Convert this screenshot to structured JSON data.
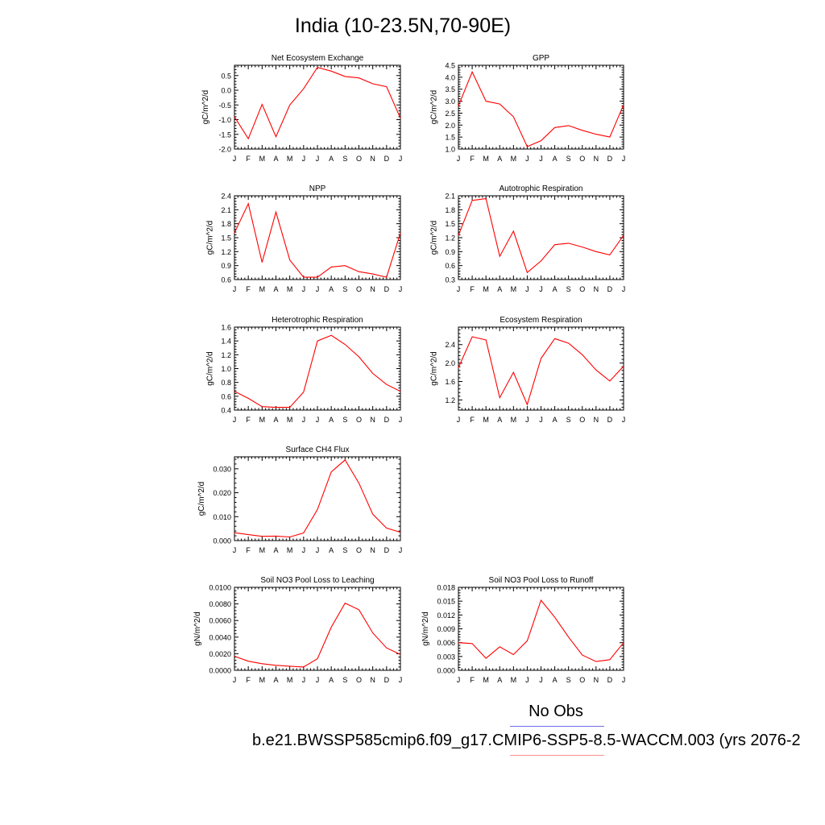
{
  "figure": {
    "title": "India (10-23.5N,70-90E)",
    "legend_top_label": "No Obs",
    "case_label": "b.e21.BWSSP585cmip6.f09_g17.CMIP6-SSP5-8.5-WACCM.003 (yrs 2076-2",
    "line_color": "#ff0000",
    "obs_line_color": "#6f6fe8",
    "case_line_color": "#ff9090"
  },
  "chart_data": [
    {
      "type": "line",
      "title": "Net Ecosystem Exchange",
      "ylabel": "gC/m^2/d",
      "categories": [
        "J",
        "F",
        "M",
        "A",
        "M",
        "J",
        "J",
        "A",
        "S",
        "O",
        "N",
        "D",
        "J"
      ],
      "values": [
        -0.9,
        -1.65,
        -0.48,
        -1.58,
        -0.5,
        0.05,
        0.78,
        0.65,
        0.47,
        0.42,
        0.22,
        0.12,
        -0.95
      ],
      "ylim": [
        -2.0,
        0.85
      ],
      "yticks": [
        -2.0,
        -1.5,
        -1.0,
        -0.5,
        0.0,
        0.5
      ],
      "ytick_labels": [
        "-2.0",
        "-1.5",
        "-1.0",
        "-0.5",
        "0.0",
        "0.5"
      ]
    },
    {
      "type": "line",
      "title": "GPP",
      "ylabel": "gC/m^2/d",
      "categories": [
        "J",
        "F",
        "M",
        "A",
        "M",
        "J",
        "J",
        "A",
        "S",
        "O",
        "N",
        "D",
        "J"
      ],
      "values": [
        2.8,
        4.22,
        3.0,
        2.88,
        2.35,
        1.1,
        1.35,
        1.9,
        1.98,
        1.78,
        1.62,
        1.5,
        2.85
      ],
      "ylim": [
        1.0,
        4.5
      ],
      "yticks": [
        1.0,
        1.5,
        2.0,
        2.5,
        3.0,
        3.5,
        4.0,
        4.5
      ],
      "ytick_labels": [
        "1.0",
        "1.5",
        "2.0",
        "2.5",
        "3.0",
        "3.5",
        "4.0",
        "4.5"
      ]
    },
    {
      "type": "line",
      "title": "NPP",
      "ylabel": "gC/m^2/d",
      "categories": [
        "J",
        "F",
        "M",
        "A",
        "M",
        "J",
        "J",
        "A",
        "S",
        "O",
        "N",
        "D",
        "J"
      ],
      "values": [
        1.6,
        2.23,
        0.97,
        2.05,
        1.02,
        0.65,
        0.65,
        0.87,
        0.9,
        0.77,
        0.72,
        0.65,
        1.6
      ],
      "ylim": [
        0.6,
        2.4
      ],
      "yticks": [
        0.6,
        0.9,
        1.2,
        1.5,
        1.8,
        2.1,
        2.4
      ],
      "ytick_labels": [
        "0.6",
        "0.9",
        "1.2",
        "1.5",
        "1.8",
        "2.1",
        "2.4"
      ]
    },
    {
      "type": "line",
      "title": "Autotrophic Respiration",
      "ylabel": "gC/m^2/d",
      "categories": [
        "J",
        "F",
        "M",
        "A",
        "M",
        "J",
        "J",
        "A",
        "S",
        "O",
        "N",
        "D",
        "J"
      ],
      "values": [
        1.25,
        2.0,
        2.04,
        0.8,
        1.34,
        0.45,
        0.7,
        1.05,
        1.08,
        1.0,
        0.9,
        0.83,
        1.25
      ],
      "ylim": [
        0.3,
        2.1
      ],
      "yticks": [
        0.3,
        0.6,
        0.9,
        1.2,
        1.5,
        1.8,
        2.1
      ],
      "ytick_labels": [
        "0.3",
        "0.6",
        "0.9",
        "1.2",
        "1.5",
        "1.8",
        "2.1"
      ]
    },
    {
      "type": "line",
      "title": "Heterotrophic Respiration",
      "ylabel": "gC/m^2/d",
      "categories": [
        "J",
        "F",
        "M",
        "A",
        "M",
        "J",
        "J",
        "A",
        "S",
        "O",
        "N",
        "D",
        "J"
      ],
      "values": [
        0.67,
        0.57,
        0.45,
        0.44,
        0.44,
        0.66,
        1.4,
        1.48,
        1.35,
        1.17,
        0.93,
        0.77,
        0.67
      ],
      "ylim": [
        0.4,
        1.6
      ],
      "yticks": [
        0.4,
        0.6,
        0.8,
        1.0,
        1.2,
        1.4,
        1.6
      ],
      "ytick_labels": [
        "0.4",
        "0.6",
        "0.8",
        "1.0",
        "1.2",
        "1.4",
        "1.6"
      ]
    },
    {
      "type": "line",
      "title": "Ecosystem Respiration",
      "ylabel": "gC/m^2/d",
      "categories": [
        "J",
        "F",
        "M",
        "A",
        "M",
        "J",
        "J",
        "A",
        "S",
        "O",
        "N",
        "D",
        "J"
      ],
      "values": [
        1.9,
        2.57,
        2.5,
        1.25,
        1.8,
        1.1,
        2.1,
        2.53,
        2.43,
        2.18,
        1.85,
        1.61,
        1.93
      ],
      "ylim": [
        0.98,
        2.78
      ],
      "yticks": [
        1.2,
        1.6,
        2.0,
        2.4
      ],
      "ytick_labels": [
        "1.2",
        "1.6",
        "2.0",
        "2.4"
      ]
    },
    {
      "type": "line",
      "title": "Surface CH4 Flux",
      "ylabel": "gC/m^2/d",
      "categories": [
        "J",
        "F",
        "M",
        "A",
        "M",
        "J",
        "J",
        "A",
        "S",
        "O",
        "N",
        "D",
        "J"
      ],
      "values": [
        0.0033,
        0.0025,
        0.0018,
        0.0019,
        0.0015,
        0.0032,
        0.013,
        0.0287,
        0.0337,
        0.024,
        0.011,
        0.0052,
        0.0035
      ],
      "ylim": [
        0.0,
        0.035
      ],
      "yticks": [
        0.0,
        0.01,
        0.02,
        0.03
      ],
      "ytick_labels": [
        "0.000",
        "0.010",
        "0.020",
        "0.030"
      ]
    },
    {
      "type": "line",
      "title": "Soil NO3 Pool Loss to Leaching",
      "ylabel": "gN/m^2/d",
      "categories": [
        "J",
        "F",
        "M",
        "A",
        "M",
        "J",
        "J",
        "A",
        "S",
        "O",
        "N",
        "D",
        "J"
      ],
      "values": [
        0.0017,
        0.0011,
        0.0008,
        0.0006,
        0.0005,
        0.0004,
        0.0014,
        0.0052,
        0.0081,
        0.0073,
        0.0045,
        0.0027,
        0.0019
      ],
      "ylim": [
        0.0,
        0.01
      ],
      "yticks": [
        0.0,
        0.002,
        0.004,
        0.006,
        0.008,
        0.01
      ],
      "ytick_labels": [
        "0.0000",
        "0.0020",
        "0.0040",
        "0.0060",
        "0.0080",
        "0.0100"
      ]
    },
    {
      "type": "line",
      "title": "Soil NO3 Pool Loss to Runoff",
      "ylabel": "gN/m^2/d",
      "categories": [
        "J",
        "F",
        "M",
        "A",
        "M",
        "J",
        "J",
        "A",
        "S",
        "O",
        "N",
        "D",
        "J"
      ],
      "values": [
        0.006,
        0.0058,
        0.0026,
        0.0051,
        0.0034,
        0.0064,
        0.0152,
        0.0115,
        0.0072,
        0.0033,
        0.0019,
        0.0023,
        0.006
      ],
      "ylim": [
        0.0,
        0.018
      ],
      "yticks": [
        0.0,
        0.003,
        0.006,
        0.009,
        0.012,
        0.015,
        0.018
      ],
      "ytick_labels": [
        "0.000",
        "0.003",
        "0.006",
        "0.009",
        "0.012",
        "0.015",
        "0.018"
      ]
    }
  ]
}
